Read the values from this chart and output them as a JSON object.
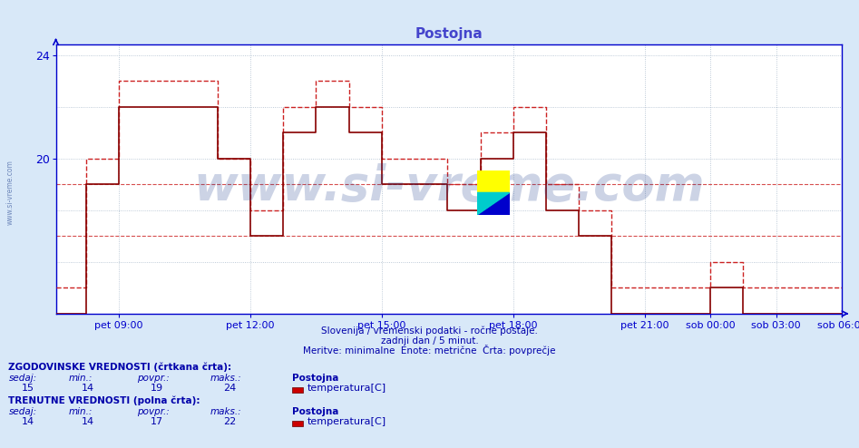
{
  "title": "Postojna",
  "title_color": "#4444cc",
  "bg_color": "#d8e8f8",
  "plot_bg_color": "#ffffff",
  "grid_color": "#aabbcc",
  "axis_color": "#0000cc",
  "text_color": "#0000aa",
  "watermark_color": "#1a3a8a",
  "xlim_min": 0,
  "xlim_max": 287,
  "ylim_min": 14,
  "ylim_max": 24.4,
  "ytick_positions": [
    20,
    24
  ],
  "ytick_labels": [
    "20",
    "24"
  ],
  "xtick_positions": [
    23,
    71,
    119,
    167,
    215,
    239,
    263,
    287
  ],
  "xtick_labels": [
    "pet 09:00",
    "pet 12:00",
    "pet 15:00",
    "pet 18:00",
    "pet 21:00",
    "sob 00:00",
    "sob 03:00",
    "sob 06:00"
  ],
  "subtitle1": "Slovenija / vremenski podatki - ročne postaje.",
  "subtitle2": "zadnji dan / 5 minut.",
  "subtitle3": "Meritve: minimalne  Enote: metrične  Črta: povprečje",
  "hist_label": "ZGODOVINSKE VREDNOSTI (črtkana črta):",
  "hist_sedaj": 15,
  "hist_min": 14,
  "hist_povpr": 19,
  "hist_maks": 24,
  "hist_station": "Postojna",
  "hist_measure": "temperatura[C]",
  "curr_label": "TRENUTNE VREDNOSTI (polna črta):",
  "curr_sedaj": 14,
  "curr_min": 14,
  "curr_povpr": 17,
  "curr_maks": 22,
  "curr_station": "Postojna",
  "curr_measure": "temperatura[C]",
  "legend_color": "#cc0000",
  "dashed_line_color": "#cc2222",
  "solid_line_color": "#880000",
  "dashed_hline_color": "#cc2222",
  "dashed_hline_positions": [
    19.0,
    17.0
  ],
  "grid_y_positions": [
    14,
    16,
    18,
    20,
    22,
    24
  ],
  "watermark": "www.si-vreme.com",
  "watermark_fontsize": 38,
  "hist_x": [
    0,
    11,
    11,
    23,
    23,
    35,
    35,
    47,
    47,
    59,
    59,
    71,
    71,
    83,
    83,
    95,
    95,
    107,
    107,
    119,
    119,
    131,
    131,
    143,
    143,
    155,
    155,
    167,
    167,
    179,
    179,
    191,
    191,
    203,
    203,
    215,
    215,
    227,
    227,
    239,
    239,
    251,
    251,
    263,
    263,
    275,
    275,
    287
  ],
  "hist_y": [
    15,
    15,
    20,
    20,
    23,
    23,
    23,
    23,
    23,
    23,
    20,
    20,
    18,
    18,
    22,
    22,
    23,
    23,
    22,
    22,
    20,
    20,
    20,
    20,
    19,
    19,
    21,
    21,
    22,
    22,
    19,
    19,
    18,
    18,
    15,
    15,
    15,
    15,
    15,
    15,
    16,
    16,
    15,
    15,
    15,
    15,
    15,
    15
  ],
  "curr_x": [
    0,
    11,
    11,
    23,
    23,
    35,
    35,
    47,
    47,
    59,
    59,
    71,
    71,
    83,
    83,
    95,
    95,
    107,
    107,
    119,
    119,
    131,
    131,
    143,
    143,
    155,
    155,
    167,
    167,
    179,
    179,
    191,
    191,
    203,
    203,
    215,
    215,
    227,
    227,
    239,
    239,
    251,
    251,
    263,
    263,
    275,
    275,
    287
  ],
  "curr_y": [
    14,
    14,
    19,
    19,
    22,
    22,
    22,
    22,
    22,
    22,
    20,
    20,
    17,
    17,
    21,
    21,
    22,
    22,
    21,
    21,
    19,
    19,
    19,
    19,
    18,
    18,
    20,
    20,
    21,
    21,
    18,
    18,
    17,
    17,
    14,
    14,
    14,
    14,
    14,
    14,
    15,
    15,
    14,
    14,
    14,
    14,
    14,
    14
  ]
}
